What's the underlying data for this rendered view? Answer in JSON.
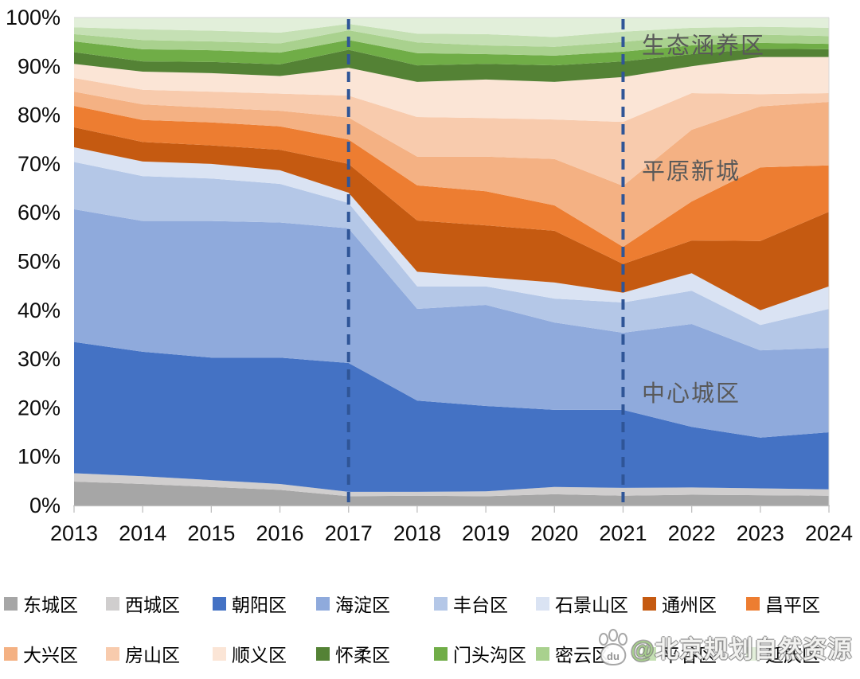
{
  "watermark": {
    "at_sign": "@",
    "text": "北京规划自然资源",
    "icon": "baidu-paw-icon",
    "icon_label": "du"
  },
  "chart_data": {
    "type": "area",
    "stacking": "percent",
    "title": "",
    "xlabel": "",
    "ylabel": "",
    "ylim": [
      0,
      100
    ],
    "grid": false,
    "legend_position": "bottom",
    "x": [
      2013,
      2014,
      2015,
      2016,
      2017,
      2018,
      2019,
      2020,
      2021,
      2022,
      2023,
      2024
    ],
    "x_tick_labels": [
      "2013",
      "2014",
      "2015",
      "2016",
      "2017",
      "2018",
      "2019",
      "2020",
      "2021",
      "2022",
      "2023",
      "2024"
    ],
    "y_tick_labels": [
      "0%",
      "10%",
      "20%",
      "30%",
      "40%",
      "50%",
      "60%",
      "70%",
      "80%",
      "90%",
      "100%"
    ],
    "reference_lines": [
      {
        "x": 2017,
        "style": "dashed",
        "color": "#2f5597"
      },
      {
        "x": 2021,
        "style": "dashed",
        "color": "#2f5597"
      }
    ],
    "annotations": [
      {
        "text": "生态涵养区",
        "region": "top-right"
      },
      {
        "text": "平原新城",
        "region": "middle-right"
      },
      {
        "text": "中心城区",
        "region": "lower-middle"
      }
    ],
    "series": [
      {
        "id": "dongcheng",
        "name": "东城区",
        "color": "#a6a6a6",
        "values": [
          4.9,
          4.4,
          3.8,
          3.2,
          1.9,
          2.0,
          1.9,
          2.3,
          2.0,
          2.2,
          2.1,
          2.0
        ]
      },
      {
        "id": "xicheng",
        "name": "西城区",
        "color": "#d0cece",
        "values": [
          1.7,
          1.6,
          1.4,
          1.2,
          0.9,
          0.8,
          1.0,
          1.5,
          1.6,
          1.5,
          1.4,
          1.3
        ]
      },
      {
        "id": "chaoyang",
        "name": "朝阳区",
        "color": "#4472c4",
        "values": [
          26.9,
          25.5,
          25.1,
          25.9,
          26.4,
          18.7,
          17.5,
          15.8,
          16.0,
          12.4,
          10.4,
          11.7
        ]
      },
      {
        "id": "haidian",
        "name": "海淀区",
        "color": "#8faadc",
        "values": [
          27.2,
          26.8,
          28.0,
          27.7,
          27.6,
          18.8,
          20.7,
          17.9,
          15.8,
          21.1,
          17.9,
          17.3
        ]
      },
      {
        "id": "fengtai",
        "name": "丰台区",
        "color": "#b4c7e7",
        "values": [
          9.7,
          9.2,
          8.7,
          7.9,
          5.2,
          4.6,
          3.8,
          4.9,
          6.2,
          6.8,
          5.2,
          8.0
        ]
      },
      {
        "id": "shijingshan",
        "name": "石景山区",
        "color": "#dae3f3",
        "values": [
          3.0,
          3.0,
          3.0,
          2.8,
          2.1,
          3.0,
          1.9,
          3.3,
          2.0,
          3.6,
          3.0,
          4.6
        ]
      },
      {
        "id": "tongzhou",
        "name": "通州区",
        "color": "#c55a11",
        "values": [
          4.1,
          4.0,
          3.8,
          4.2,
          5.9,
          10.5,
          10.6,
          10.6,
          5.9,
          6.7,
          14.2,
          15.3
        ]
      },
      {
        "id": "changping",
        "name": "昌平区",
        "color": "#ed7d31",
        "values": [
          4.4,
          4.5,
          4.7,
          4.8,
          5.0,
          7.2,
          7.0,
          5.2,
          3.5,
          8.0,
          15.1,
          9.5
        ]
      },
      {
        "id": "daxing",
        "name": "大兴区",
        "color": "#f4b183",
        "values": [
          2.9,
          3.2,
          3.0,
          3.2,
          4.5,
          5.9,
          7.1,
          9.5,
          12.5,
          14.7,
          12.5,
          13.0
        ]
      },
      {
        "id": "fangshan",
        "name": "房山区",
        "color": "#f8cbad",
        "values": [
          2.8,
          3.0,
          3.3,
          3.5,
          4.5,
          8.1,
          7.9,
          8.1,
          13.1,
          7.5,
          2.5,
          1.8
        ]
      },
      {
        "id": "shunyi",
        "name": "顺义区",
        "color": "#fbe5d6",
        "values": [
          2.9,
          3.7,
          3.8,
          3.6,
          5.7,
          7.2,
          7.9,
          7.7,
          9.2,
          5.5,
          7.6,
          7.4
        ]
      },
      {
        "id": "huairou",
        "name": "怀柔区",
        "color": "#548235",
        "values": [
          2.4,
          2.1,
          2.3,
          2.4,
          3.7,
          3.4,
          3.2,
          3.4,
          3.2,
          2.5,
          1.7,
          1.6
        ]
      },
      {
        "id": "mentougou",
        "name": "门头沟区",
        "color": "#70ad47",
        "values": [
          2.2,
          2.5,
          2.4,
          2.4,
          2.0,
          2.5,
          2.0,
          2.0,
          2.0,
          1.8,
          1.2,
          1.1
        ]
      },
      {
        "id": "miyun",
        "name": "密云区",
        "color": "#a9d18e",
        "values": [
          1.5,
          1.9,
          1.8,
          1.9,
          2.0,
          2.2,
          1.8,
          1.8,
          2.0,
          2.0,
          1.7,
          1.6
        ]
      },
      {
        "id": "pinggu",
        "name": "平谷区",
        "color": "#c5e0b4",
        "values": [
          1.4,
          2.2,
          2.2,
          2.2,
          1.3,
          1.8,
          2.3,
          2.0,
          2.1,
          1.6,
          1.6,
          1.7
        ]
      },
      {
        "id": "yanqing",
        "name": "延庆区",
        "color": "#e2efda",
        "values": [
          2.0,
          2.4,
          2.7,
          3.1,
          1.3,
          3.3,
          3.4,
          4.0,
          2.9,
          2.1,
          1.9,
          2.1
        ]
      }
    ]
  }
}
